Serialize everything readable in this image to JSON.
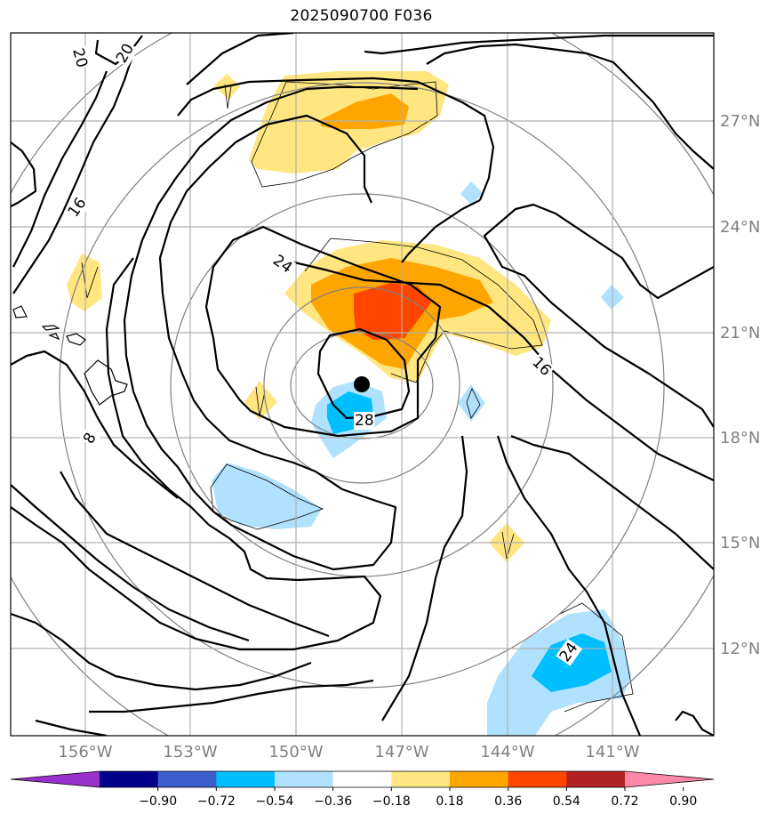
{
  "title": "2025090700 F036",
  "map": {
    "lon_labels": [
      "156°W",
      "153°W",
      "150°W",
      "147°W",
      "144°W",
      "141°W"
    ],
    "lat_labels": [
      "27°N",
      "24°N",
      "21°N",
      "18°N",
      "15°N",
      "12°N"
    ],
    "storm_center": {
      "lon": -148.2,
      "lat": 19.5
    },
    "contour_labels": [
      "20",
      "20",
      "16",
      "24",
      "24",
      "16",
      "28",
      "8",
      "24"
    ]
  },
  "colorbar": {
    "tick_labels": [
      "−0.90",
      "−0.72",
      "−0.54",
      "−0.36",
      "−0.18",
      "0.18",
      "0.36",
      "0.54",
      "0.72",
      "0.90"
    ],
    "colors": [
      "#9932cc",
      "#00008b",
      "#3a5fcd",
      "#00bfff",
      "#b0e2ff",
      "#ffffff",
      "#ffe680",
      "#ffa500",
      "#ff4500",
      "#b22222",
      "#ff88aa"
    ]
  }
}
